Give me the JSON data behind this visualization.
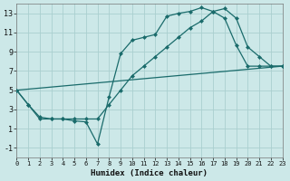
{
  "xlabel": "Humidex (Indice chaleur)",
  "xlim": [
    0,
    23
  ],
  "ylim": [
    -2,
    14
  ],
  "xticks": [
    0,
    1,
    2,
    3,
    4,
    5,
    6,
    7,
    8,
    9,
    10,
    11,
    12,
    13,
    14,
    15,
    16,
    17,
    18,
    19,
    20,
    21,
    22,
    23
  ],
  "yticks": [
    -1,
    1,
    3,
    5,
    7,
    9,
    11,
    13
  ],
  "bg_color": "#cce8e8",
  "grid_color": "#aacfcf",
  "line_color": "#1a6b6b",
  "curve1_x": [
    0,
    1,
    2,
    3,
    4,
    5,
    6,
    7,
    8,
    9,
    10,
    11,
    12,
    13,
    14,
    15,
    16,
    17,
    18,
    19,
    20,
    21,
    22,
    23
  ],
  "curve1_y": [
    5.0,
    3.5,
    2.0,
    2.0,
    2.0,
    1.8,
    1.7,
    -0.6,
    4.3,
    8.8,
    10.2,
    10.5,
    10.8,
    12.7,
    13.0,
    13.2,
    13.6,
    13.2,
    12.5,
    9.7,
    7.5,
    7.5,
    7.5,
    7.5
  ],
  "curve2_x": [
    0,
    1,
    2,
    3,
    4,
    5,
    6,
    7,
    8,
    9,
    10,
    11,
    12,
    13,
    14,
    15,
    16,
    17,
    18,
    19,
    20,
    21,
    22,
    23
  ],
  "curve2_y": [
    5.0,
    3.5,
    2.2,
    2.0,
    2.0,
    2.0,
    2.0,
    2.0,
    3.5,
    5.0,
    6.5,
    7.5,
    8.5,
    9.5,
    10.5,
    11.5,
    12.2,
    13.2,
    13.5,
    12.5,
    9.5,
    8.5,
    7.5,
    7.5
  ],
  "line3_x": [
    0,
    23
  ],
  "line3_y": [
    5.0,
    7.5
  ],
  "marker_size": 2.5,
  "line_width": 0.9,
  "xlabel_fontsize": 6.5,
  "tick_fontsize_x": 5.0,
  "tick_fontsize_y": 6.0
}
